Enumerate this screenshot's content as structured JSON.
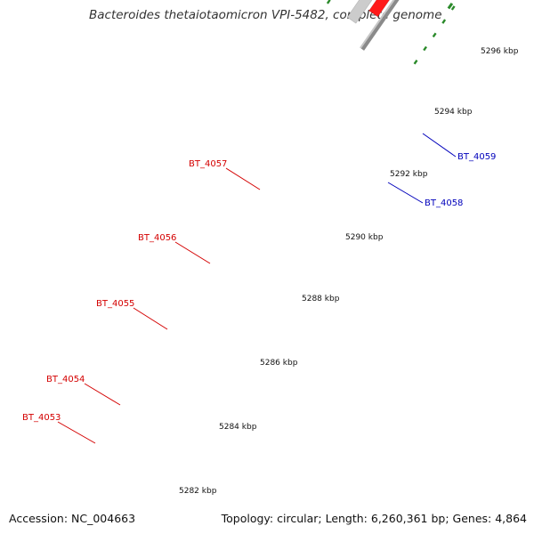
{
  "title": "Bacteroides thetaiotaomicron VPI-5482, complete genome",
  "accession": "Accession: NC_004663",
  "stats": "Topology: circular; Length: 6,260,361 bp; Genes: 4,864",
  "scale_labels": [
    "5282 kbp",
    "5284 kbp",
    "5286 kbp",
    "5288 kbp",
    "5290 kbp",
    "5292 kbp",
    "5294 kbp",
    "5296 kbp"
  ],
  "gene_labels": [
    {
      "text": "BT_4053",
      "color": "#d40000"
    },
    {
      "text": "BT_4054",
      "color": "#d40000"
    },
    {
      "text": "BT_4055",
      "color": "#d40000"
    },
    {
      "text": "BT_4056",
      "color": "#d40000"
    },
    {
      "text": "BT_4057",
      "color": "#d40000"
    },
    {
      "text": "BT_4058",
      "color": "#0000bb"
    },
    {
      "text": "BT_4059",
      "color": "#0000bb"
    }
  ],
  "colors": {
    "backbone": "#8a8a8a",
    "forward_gene": "#ff1a1a",
    "reverse_gene": "#1a1aee",
    "cyan_gene": "#33ffff",
    "slate_gene": "#4b4b99",
    "olive_gene": "#6f8f2a",
    "grey_gene": "#cccccc",
    "ticks": "#2a8a2a"
  }
}
